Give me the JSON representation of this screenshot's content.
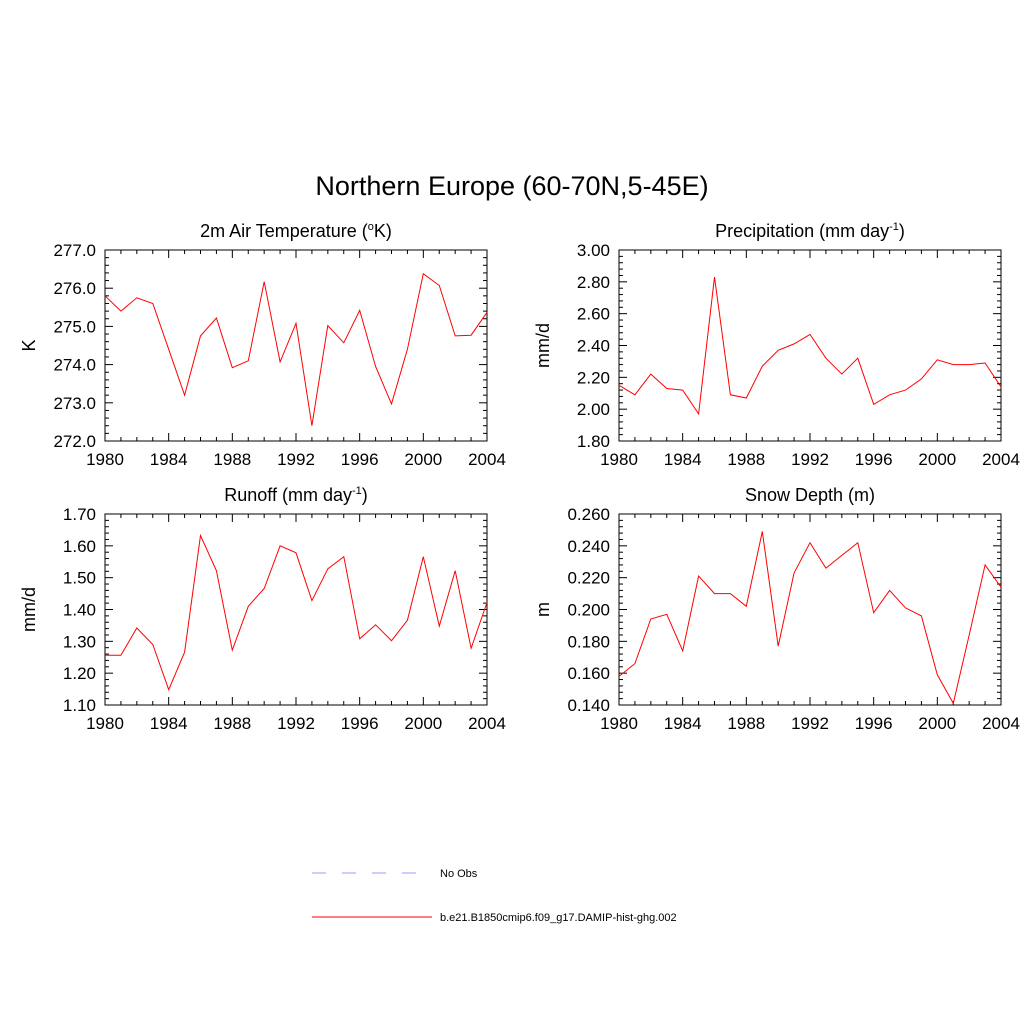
{
  "title": "Northern Europe (60-70N,5-45E)",
  "colors": {
    "model_line": "#ff0000",
    "obs_line": "#9999ff"
  },
  "legend": {
    "entries": [
      {
        "label": "No Obs",
        "style": "dashed",
        "color": "#9999ff"
      },
      {
        "label": "b.e21.B1850cmip6.f09_g17.DAMIP-hist-ghg.002",
        "style": "solid",
        "color": "#ff0000"
      }
    ]
  },
  "chart_data": [
    {
      "type": "line",
      "title": "2m Air Temperature (",
      "title_sup": "o",
      "title_suffix": "K)",
      "ylabel": "K",
      "xlim": [
        1980,
        2004
      ],
      "ylim": [
        272.0,
        277.0
      ],
      "xticks": [
        1980,
        1984,
        1988,
        1992,
        1996,
        2000,
        2004
      ],
      "yticks": [
        "272.0",
        "273.0",
        "274.0",
        "275.0",
        "276.0",
        "277.0"
      ],
      "x": [
        1980,
        1981,
        1982,
        1983,
        1984,
        1985,
        1986,
        1987,
        1988,
        1989,
        1990,
        1991,
        1992,
        1993,
        1994,
        1995,
        1996,
        1997,
        1998,
        1999,
        2000,
        2001,
        2002,
        2003,
        2004
      ],
      "series": [
        {
          "values": [
            275.8,
            275.4,
            275.75,
            275.6,
            274.4,
            273.2,
            274.75,
            275.22,
            273.92,
            274.1,
            276.17,
            274.07,
            275.08,
            272.4,
            275.02,
            274.57,
            275.42,
            273.95,
            272.97,
            274.4,
            276.38,
            276.07,
            274.75,
            274.77,
            275.37
          ]
        }
      ]
    },
    {
      "type": "line",
      "title": "Precipitation (mm day",
      "title_sup": "-1",
      "title_suffix": ")",
      "ylabel": "mm/d",
      "xlim": [
        1980,
        2004
      ],
      "ylim": [
        1.8,
        3.0
      ],
      "xticks": [
        1980,
        1984,
        1988,
        1992,
        1996,
        2000,
        2004
      ],
      "yticks": [
        "1.80",
        "2.00",
        "2.20",
        "2.40",
        "2.60",
        "2.80",
        "3.00"
      ],
      "x": [
        1980,
        1981,
        1982,
        1983,
        1984,
        1985,
        1986,
        1987,
        1988,
        1989,
        1990,
        1991,
        1992,
        1993,
        1994,
        1995,
        1996,
        1997,
        1998,
        1999,
        2000,
        2001,
        2002,
        2003,
        2004
      ],
      "series": [
        {
          "values": [
            2.15,
            2.09,
            2.22,
            2.13,
            2.12,
            1.97,
            2.83,
            2.09,
            2.07,
            2.27,
            2.37,
            2.41,
            2.47,
            2.32,
            2.22,
            2.32,
            2.03,
            2.09,
            2.12,
            2.19,
            2.31,
            2.28,
            2.28,
            2.29,
            2.14
          ]
        }
      ]
    },
    {
      "type": "line",
      "title": "Runoff (mm day",
      "title_sup": "-1",
      "title_suffix": ")",
      "ylabel": "mm/d",
      "xlim": [
        1980,
        2004
      ],
      "ylim": [
        1.1,
        1.7
      ],
      "xticks": [
        1980,
        1984,
        1988,
        1992,
        1996,
        2000,
        2004
      ],
      "yticks": [
        "1.10",
        "1.20",
        "1.30",
        "1.40",
        "1.50",
        "1.60",
        "1.70"
      ],
      "x": [
        1980,
        1981,
        1982,
        1983,
        1984,
        1985,
        1986,
        1987,
        1988,
        1989,
        1990,
        1991,
        1992,
        1993,
        1994,
        1995,
        1996,
        1997,
        1998,
        1999,
        2000,
        2001,
        2002,
        2003,
        2004
      ],
      "series": [
        {
          "values": [
            1.256,
            1.256,
            1.342,
            1.29,
            1.148,
            1.266,
            1.632,
            1.522,
            1.272,
            1.41,
            1.466,
            1.6,
            1.578,
            1.428,
            1.528,
            1.566,
            1.308,
            1.352,
            1.302,
            1.366,
            1.566,
            1.348,
            1.522,
            1.278,
            1.422
          ]
        }
      ]
    },
    {
      "type": "line",
      "title": "Snow Depth (m)",
      "title_sup": "",
      "title_suffix": "",
      "ylabel": "m",
      "xlim": [
        1980,
        2004
      ],
      "ylim": [
        0.14,
        0.26
      ],
      "xticks": [
        1980,
        1984,
        1988,
        1992,
        1996,
        2000,
        2004
      ],
      "yticks": [
        "0.140",
        "0.160",
        "0.180",
        "0.200",
        "0.220",
        "0.240",
        "0.260"
      ],
      "x": [
        1980,
        1981,
        1982,
        1983,
        1984,
        1985,
        1986,
        1987,
        1988,
        1989,
        1990,
        1991,
        1992,
        1993,
        1994,
        1995,
        1996,
        1997,
        1998,
        1999,
        2000,
        2001,
        2002,
        2003,
        2004
      ],
      "series": [
        {
          "values": [
            0.158,
            0.166,
            0.194,
            0.197,
            0.174,
            0.221,
            0.21,
            0.21,
            0.202,
            0.249,
            0.177,
            0.223,
            0.242,
            0.226,
            0.234,
            0.242,
            0.198,
            0.212,
            0.201,
            0.196,
            0.159,
            0.141,
            0.184,
            0.228,
            0.214
          ]
        }
      ]
    }
  ]
}
